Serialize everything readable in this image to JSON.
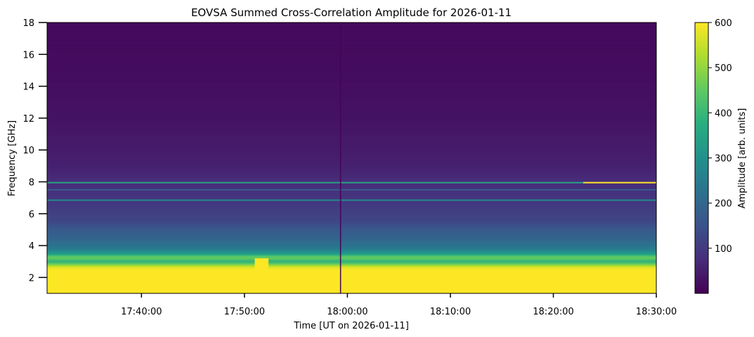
{
  "chart_data": {
    "type": "heatmap",
    "title": "EOVSA Summed Cross-Correlation Amplitude for 2026-01-11",
    "xlabel": "Time [UT on 2026-01-11]",
    "ylabel": "Frequency [GHz]",
    "colorbar_label": "Amplitude [arb. units]",
    "colormap": "viridis",
    "x_range": [
      "17:30:50",
      "18:30:00"
    ],
    "x_ticks": [
      "17:40:00",
      "17:50:00",
      "18:00:00",
      "18:10:00",
      "18:20:00",
      "18:30:00"
    ],
    "ylim": [
      1,
      18
    ],
    "y_ticks": [
      2,
      4,
      6,
      8,
      10,
      12,
      14,
      16,
      18
    ],
    "y_tick_labels": [
      "2",
      "4",
      "6",
      "8",
      "10",
      "12",
      "14",
      "16",
      "18"
    ],
    "clim": [
      0,
      600
    ],
    "colorbar_ticks": [
      100,
      200,
      300,
      400,
      500,
      600
    ],
    "colorbar_tick_labels": [
      "100",
      "200",
      "300",
      "400",
      "500",
      "600"
    ],
    "frequency_profile": {
      "frequency_ghz": [
        1.0,
        1.2,
        1.5,
        2.0,
        2.5,
        2.7,
        3.0,
        3.3,
        3.5,
        3.8,
        4.0,
        4.5,
        5.0,
        5.5,
        6.0,
        6.5,
        7.0,
        7.5,
        8.0,
        9.0,
        10.0,
        12.0,
        14.0,
        16.0,
        18.0
      ],
      "amplitude": [
        600,
        600,
        600,
        600,
        600,
        560,
        380,
        470,
        330,
        250,
        230,
        190,
        170,
        130,
        115,
        100,
        90,
        80,
        75,
        55,
        45,
        30,
        22,
        18,
        15
      ]
    },
    "lines": [
      {
        "frequency_ghz": 7.95,
        "amplitude": 350,
        "end_amplitude": 600
      },
      {
        "frequency_ghz": 6.85,
        "amplitude": 290
      },
      {
        "frequency_ghz": 7.5,
        "amplitude": 180
      }
    ],
    "bursts": [
      {
        "start": "17:51:00",
        "end": "17:52:20",
        "amplitude": 600,
        "freq_max_ghz": 3.2
      }
    ],
    "gaps": [
      {
        "time": "17:59:20",
        "amplitude": 5
      }
    ]
  }
}
